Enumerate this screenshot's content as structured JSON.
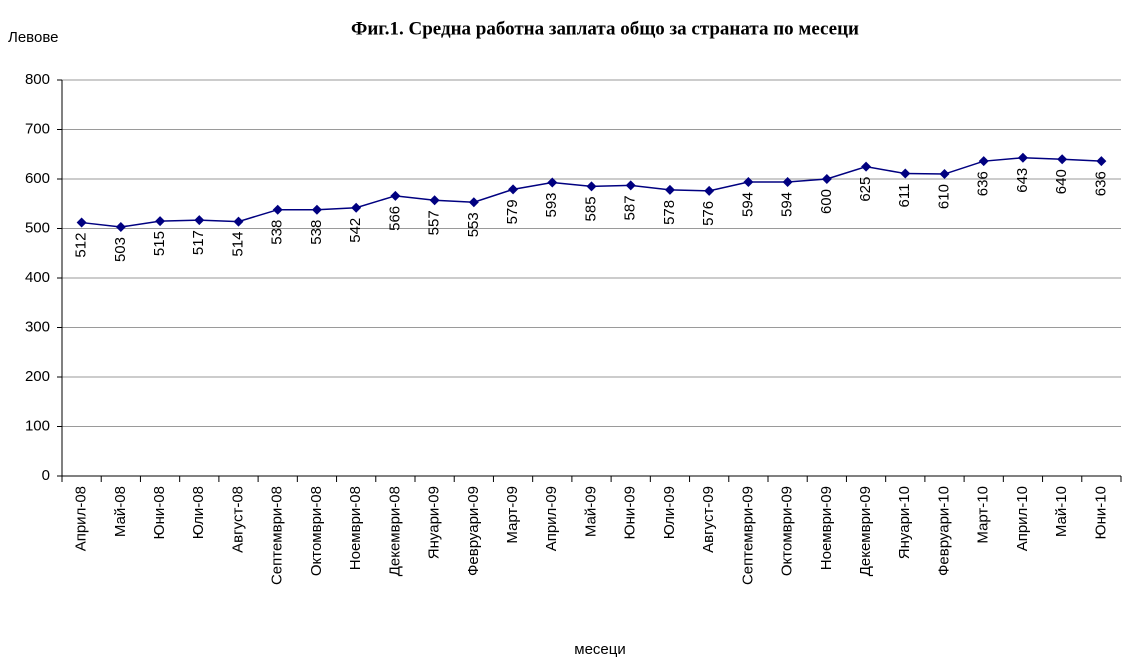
{
  "chart_data": {
    "type": "line",
    "title": "Фиг.1.  Средна работна заплата общо за страната по месеци",
    "y_label": "Левове",
    "x_label": "месеци",
    "categories": [
      "Април-08",
      "Май-08",
      "Юни-08",
      "Юли-08",
      "Август-08",
      "Септември-08",
      "Октомври-08",
      "Ноември-08",
      "Декември-08",
      "Януари-09",
      "Февруари-09",
      "Март-09",
      "Април-09",
      "Май-09",
      "Юни-09",
      "Юли-09",
      "Август-09",
      "Септември-09",
      "Октомври-09",
      "Ноември-09",
      "Декември-09",
      "Януари-10",
      "Февруари-10",
      "Март-10",
      "Април-10",
      "Май-10",
      "Юни-10"
    ],
    "series": [
      {
        "color": "#000080",
        "values": [
          512,
          503,
          515,
          517,
          514,
          538,
          538,
          542,
          566,
          557,
          553,
          579,
          593,
          585,
          587,
          578,
          576,
          594,
          594,
          600,
          625,
          611,
          610,
          636,
          643,
          640,
          636
        ]
      }
    ],
    "ylim": [
      0,
      800
    ],
    "yticks": [
      0,
      100,
      200,
      300,
      400,
      500,
      600,
      700,
      800
    ],
    "grid": true
  }
}
